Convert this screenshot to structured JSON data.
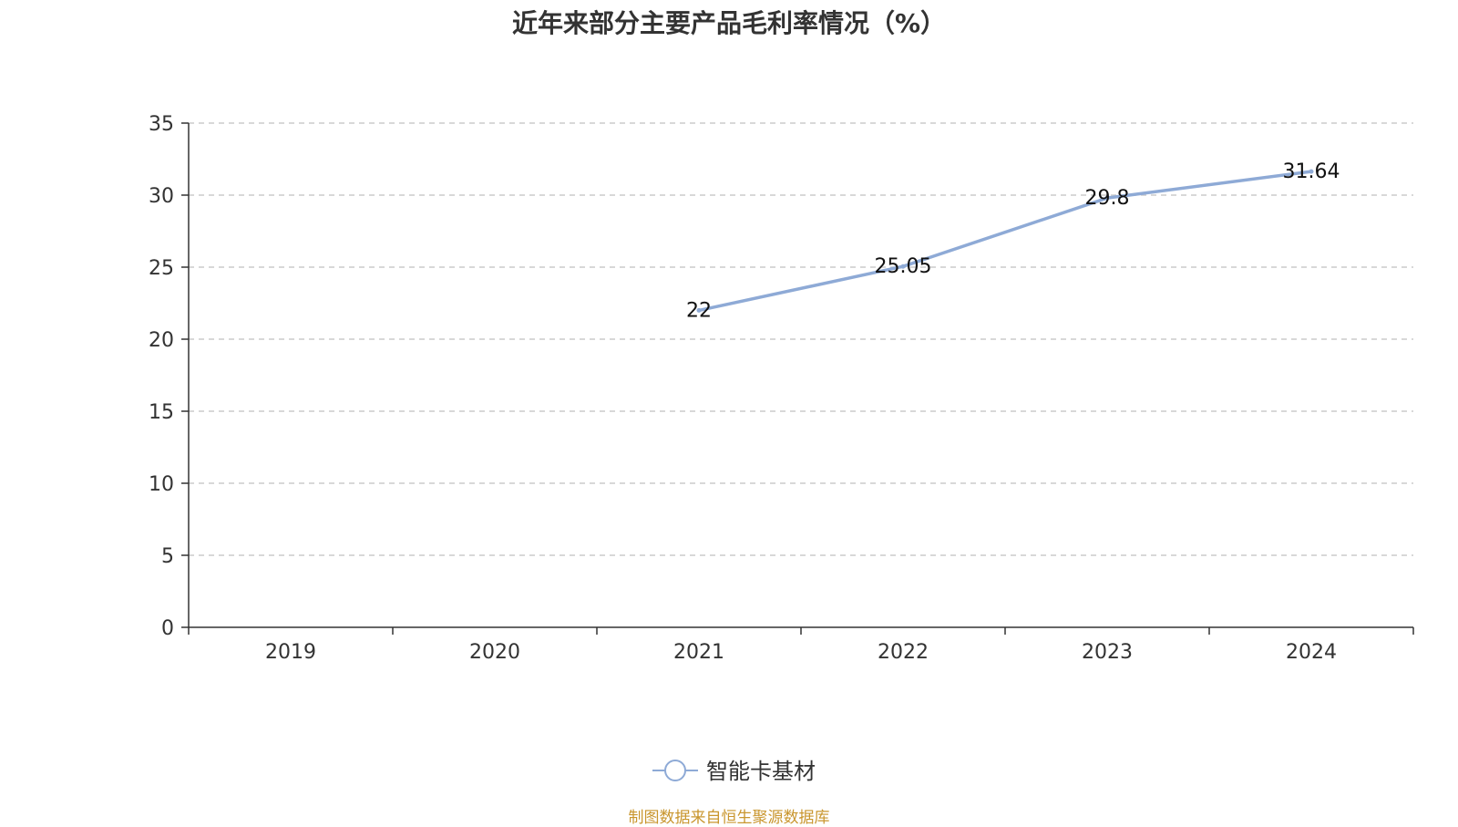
{
  "chart_data": {
    "type": "line",
    "title": "近年来部分主要产品毛利率情况（%）",
    "categories": [
      "2019",
      "2020",
      "2021",
      "2022",
      "2023",
      "2024"
    ],
    "series": [
      {
        "name": "智能卡基材",
        "values": [
          null,
          null,
          22,
          25.05,
          29.8,
          31.64
        ],
        "color": "#8eaad6"
      }
    ],
    "ylim": [
      0,
      35
    ],
    "yticks": [
      0,
      5,
      10,
      15,
      20,
      25,
      30,
      35
    ],
    "grid": true,
    "legend_position": "bottom-center",
    "xlabel": "",
    "ylabel": ""
  },
  "source_note": "制图数据来自恒生聚源数据库"
}
